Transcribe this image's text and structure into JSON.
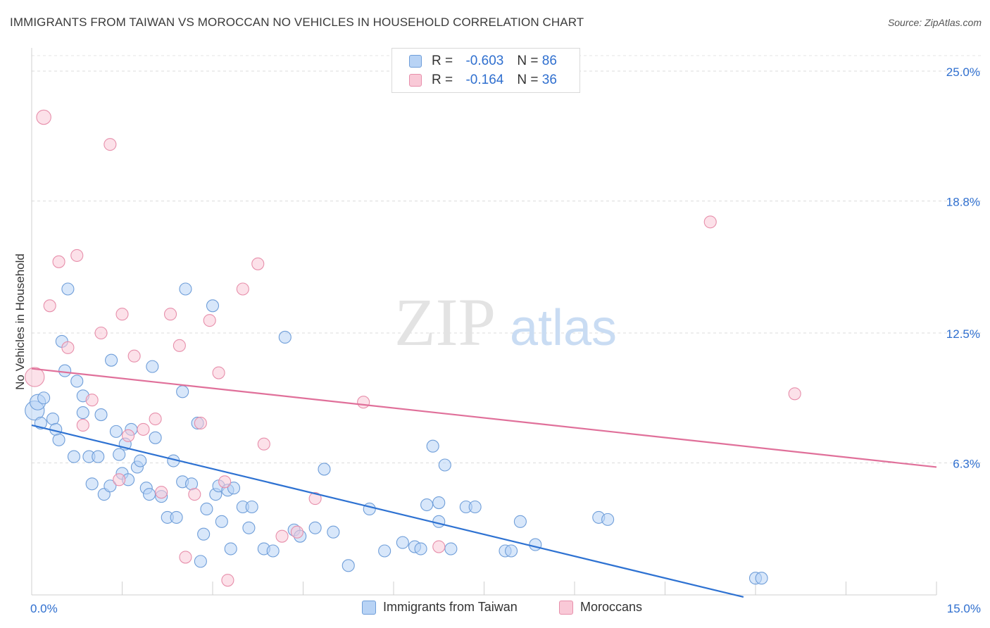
{
  "title": "IMMIGRANTS FROM TAIWAN VS MOROCCAN NO VEHICLES IN HOUSEHOLD CORRELATION CHART",
  "source": "Source: ZipAtlas.com",
  "watermark": {
    "zip": "ZIP",
    "atlas": "atlas"
  },
  "legend": {
    "r_label": "R =",
    "n_label": "N =",
    "series1": {
      "r": "-0.603",
      "n": "86",
      "fill": "#b8d3f5",
      "stroke": "#6f9ed9"
    },
    "series2": {
      "r": "-0.164",
      "n": "36",
      "fill": "#f9c9d7",
      "stroke": "#e78fab"
    }
  },
  "bottom_legend": {
    "series1": "Immigrants from Taiwan",
    "series2": "Moroccans"
  },
  "chart_data": {
    "type": "scatter",
    "title": "IMMIGRANTS FROM TAIWAN VS MOROCCAN NO VEHICLES IN HOUSEHOLD CORRELATION CHART",
    "xlabel": "",
    "ylabel": "No Vehicles in Household",
    "xlim": [
      0,
      15
    ],
    "ylim": [
      0,
      25
    ],
    "x_tick_labels": [
      "0.0%",
      "15.0%"
    ],
    "y_ticks": [
      6.3,
      12.5,
      18.8,
      25.0
    ],
    "y_tick_labels": [
      "6.3%",
      "12.5%",
      "18.8%",
      "25.0%"
    ],
    "grid": true,
    "legend_position": "top-center",
    "series": [
      {
        "name": "Immigrants from Taiwan",
        "color": "#6f9ed9",
        "fill": "#b8d3f5",
        "trend_color": "#2e72d2",
        "trend": {
          "x": [
            0,
            11.8
          ],
          "y": [
            8.1,
            -0.1
          ]
        },
        "points": [
          [
            0.05,
            8.8,
            1.6
          ],
          [
            0.1,
            9.2,
            1.3
          ],
          [
            0.2,
            9.4,
            1
          ],
          [
            0.15,
            8.2,
            1
          ],
          [
            0.35,
            8.4,
            1
          ],
          [
            0.4,
            7.9,
            1
          ],
          [
            0.45,
            7.4,
            1
          ],
          [
            0.5,
            12.1,
            1
          ],
          [
            0.6,
            14.6,
            1
          ],
          [
            0.55,
            10.7,
            1
          ],
          [
            0.75,
            10.2,
            1
          ],
          [
            0.85,
            9.5,
            1
          ],
          [
            0.85,
            8.7,
            1
          ],
          [
            1.15,
            8.6,
            1
          ],
          [
            0.7,
            6.6,
            1
          ],
          [
            0.95,
            6.6,
            1
          ],
          [
            1.1,
            6.6,
            1
          ],
          [
            1.0,
            5.3,
            1
          ],
          [
            1.2,
            4.8,
            1
          ],
          [
            1.3,
            5.2,
            1
          ],
          [
            1.32,
            11.2,
            1
          ],
          [
            1.4,
            7.8,
            1
          ],
          [
            1.45,
            6.7,
            1
          ],
          [
            1.55,
            7.2,
            1
          ],
          [
            1.5,
            5.8,
            1
          ],
          [
            1.6,
            5.5,
            1
          ],
          [
            1.65,
            7.9,
            1
          ],
          [
            1.75,
            6.1,
            1
          ],
          [
            1.8,
            6.4,
            1
          ],
          [
            1.9,
            5.1,
            1
          ],
          [
            1.95,
            4.8,
            1
          ],
          [
            2.0,
            10.9,
            1
          ],
          [
            2.05,
            7.5,
            1
          ],
          [
            2.15,
            4.7,
            1
          ],
          [
            2.25,
            3.7,
            1
          ],
          [
            2.35,
            6.4,
            1
          ],
          [
            2.4,
            3.7,
            1
          ],
          [
            2.5,
            9.7,
            1
          ],
          [
            2.5,
            5.4,
            1
          ],
          [
            2.55,
            14.6,
            1
          ],
          [
            2.65,
            5.3,
            1
          ],
          [
            2.75,
            8.2,
            1
          ],
          [
            2.8,
            1.6,
            1
          ],
          [
            2.85,
            2.9,
            1
          ],
          [
            2.9,
            4.1,
            1
          ],
          [
            3.0,
            13.8,
            1
          ],
          [
            3.05,
            4.8,
            1
          ],
          [
            3.1,
            5.2,
            1
          ],
          [
            3.15,
            3.5,
            1
          ],
          [
            3.25,
            5.0,
            1
          ],
          [
            3.3,
            2.2,
            1
          ],
          [
            3.35,
            5.1,
            1
          ],
          [
            3.5,
            4.2,
            1
          ],
          [
            3.6,
            3.2,
            1
          ],
          [
            3.65,
            4.2,
            1
          ],
          [
            3.85,
            2.2,
            1
          ],
          [
            4.0,
            2.1,
            1
          ],
          [
            4.2,
            12.3,
            1
          ],
          [
            4.35,
            3.1,
            1
          ],
          [
            4.45,
            2.8,
            1
          ],
          [
            4.7,
            3.2,
            1
          ],
          [
            4.85,
            6.0,
            1
          ],
          [
            5.0,
            3.0,
            1
          ],
          [
            5.25,
            1.4,
            1
          ],
          [
            5.6,
            4.1,
            1
          ],
          [
            5.85,
            2.1,
            1
          ],
          [
            6.15,
            2.5,
            1
          ],
          [
            6.35,
            2.3,
            1
          ],
          [
            6.45,
            2.2,
            1
          ],
          [
            6.55,
            4.3,
            1
          ],
          [
            6.65,
            7.1,
            1
          ],
          [
            6.75,
            3.5,
            1
          ],
          [
            6.75,
            4.4,
            1
          ],
          [
            6.85,
            6.2,
            1
          ],
          [
            6.95,
            2.2,
            1
          ],
          [
            7.2,
            4.2,
            1
          ],
          [
            7.35,
            4.2,
            1
          ],
          [
            7.85,
            2.1,
            1
          ],
          [
            7.95,
            2.1,
            1
          ],
          [
            8.1,
            3.5,
            1
          ],
          [
            8.35,
            2.4,
            1
          ],
          [
            9.4,
            3.7,
            1
          ],
          [
            9.55,
            3.6,
            1
          ],
          [
            12.0,
            0.8,
            1
          ],
          [
            12.1,
            0.8,
            1
          ]
        ]
      },
      {
        "name": "Moroccans",
        "color": "#e78fab",
        "fill": "#f9c9d7",
        "trend_color": "#e0709a",
        "trend": {
          "x": [
            0,
            15
          ],
          "y": [
            10.8,
            6.1
          ]
        },
        "points": [
          [
            0.05,
            10.4,
            1.6
          ],
          [
            0.2,
            22.8,
            1.2
          ],
          [
            0.3,
            13.8,
            1
          ],
          [
            0.45,
            15.9,
            1
          ],
          [
            0.6,
            11.8,
            1
          ],
          [
            0.75,
            16.2,
            1
          ],
          [
            0.85,
            8.1,
            1
          ],
          [
            1.0,
            9.3,
            1
          ],
          [
            1.15,
            12.5,
            1
          ],
          [
            1.3,
            21.5,
            1
          ],
          [
            1.45,
            5.5,
            1
          ],
          [
            1.5,
            13.4,
            1
          ],
          [
            1.6,
            7.6,
            1
          ],
          [
            1.7,
            11.4,
            1
          ],
          [
            1.85,
            7.9,
            1
          ],
          [
            2.05,
            8.4,
            1
          ],
          [
            2.15,
            4.9,
            1
          ],
          [
            2.3,
            13.4,
            1
          ],
          [
            2.45,
            11.9,
            1
          ],
          [
            2.55,
            1.8,
            1
          ],
          [
            2.7,
            4.8,
            1
          ],
          [
            2.8,
            8.2,
            1
          ],
          [
            2.95,
            13.1,
            1
          ],
          [
            3.1,
            10.6,
            1
          ],
          [
            3.2,
            5.4,
            1
          ],
          [
            3.25,
            0.7,
            1
          ],
          [
            3.5,
            14.6,
            1
          ],
          [
            3.75,
            15.8,
            1
          ],
          [
            3.85,
            7.2,
            1
          ],
          [
            4.15,
            2.8,
            1
          ],
          [
            4.4,
            3.0,
            1
          ],
          [
            4.7,
            4.6,
            1
          ],
          [
            5.5,
            9.2,
            1
          ],
          [
            6.75,
            2.3,
            1
          ],
          [
            11.25,
            17.8,
            1
          ],
          [
            12.65,
            9.6,
            1
          ]
        ]
      }
    ]
  }
}
